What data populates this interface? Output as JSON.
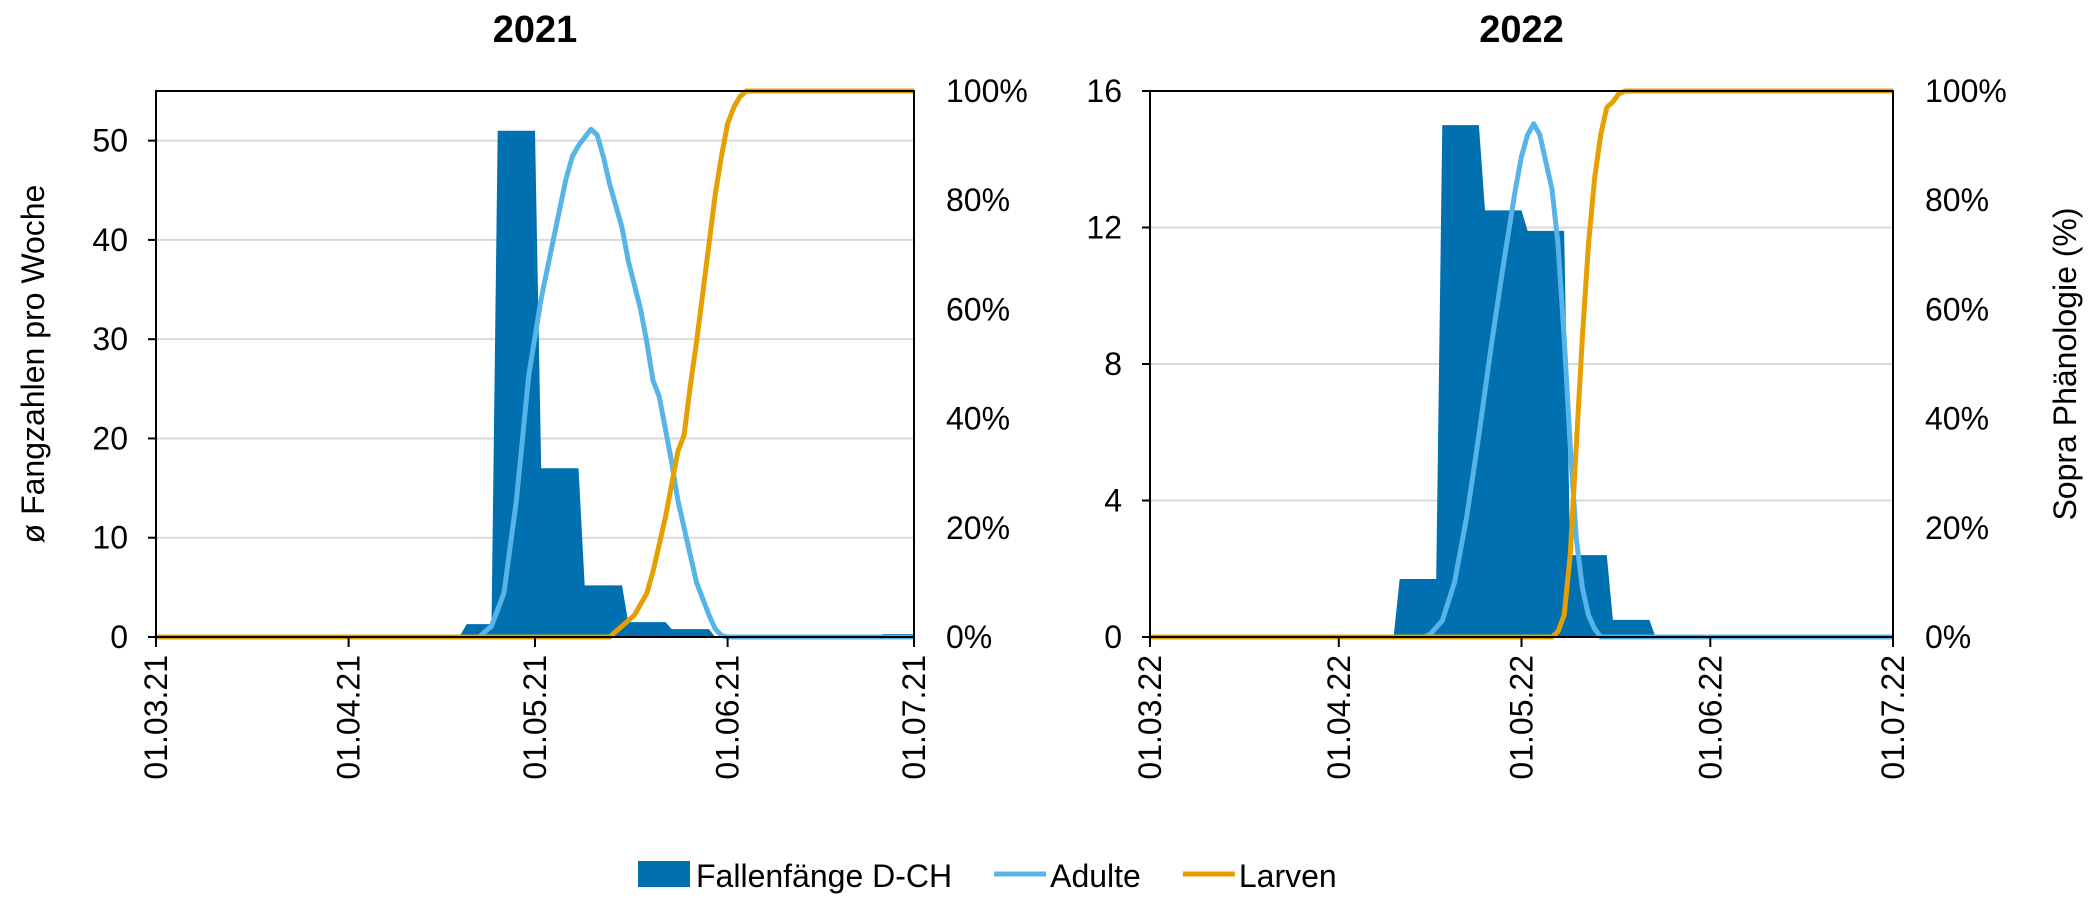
{
  "colors": {
    "fallen": "#0070B0",
    "adulte": "#56B4E9",
    "larven": "#E69F00",
    "grid": "#D9D9D9",
    "frame": "#000000"
  },
  "legend": {
    "placement": "bottom-center",
    "items": [
      {
        "key": "fallen",
        "label": "Fallenfänge D-CH",
        "kind": "area"
      },
      {
        "key": "adulte",
        "label": "Adulte",
        "kind": "line"
      },
      {
        "key": "larven",
        "label": "Larven",
        "kind": "line"
      }
    ]
  },
  "chart_data": [
    {
      "type": "area",
      "title": "2021",
      "ylabel_left": "ø Fangzahlen pro Woche",
      "ylabel_right": "",
      "grid": true,
      "x_range": [
        "2021-03-01",
        "2021-07-01"
      ],
      "x_ticks": [
        {
          "date": "2021-03-01",
          "label": "01.03.21"
        },
        {
          "date": "2021-04-01",
          "label": "01.04.21"
        },
        {
          "date": "2021-05-01",
          "label": "01.05.21"
        },
        {
          "date": "2021-06-01",
          "label": "01.06.21"
        },
        {
          "date": "2021-07-01",
          "label": "01.07.21"
        }
      ],
      "y_left": {
        "min": 0,
        "max": 55,
        "ticks": [
          0,
          10,
          20,
          30,
          40,
          50
        ]
      },
      "y_right": {
        "min": 0,
        "max": 100,
        "ticks": [
          0,
          20,
          40,
          60,
          80,
          100
        ],
        "tick_labels": [
          "0%",
          "20%",
          "40%",
          "60%",
          "80%",
          "100%"
        ]
      },
      "series": [
        {
          "key": "fallen",
          "name": "Fallenfänge D-CH",
          "kind": "area",
          "axis": "left",
          "points": [
            [
              "2021-03-01",
              0
            ],
            [
              "2021-04-11",
              0
            ],
            [
              "2021-04-19",
              0.2
            ],
            [
              "2021-04-20",
              1.3
            ],
            [
              "2021-04-24",
              1.3
            ],
            [
              "2021-04-25",
              51
            ],
            [
              "2021-05-01",
              51
            ],
            [
              "2021-05-02",
              17
            ],
            [
              "2021-05-08",
              17
            ],
            [
              "2021-05-09",
              5.2
            ],
            [
              "2021-05-15",
              5.2
            ],
            [
              "2021-05-16",
              1.5
            ],
            [
              "2021-05-22",
              1.5
            ],
            [
              "2021-05-23",
              0.8
            ],
            [
              "2021-05-29",
              0.8
            ],
            [
              "2021-05-30",
              0
            ],
            [
              "2021-06-25",
              0
            ],
            [
              "2021-06-26",
              0.3
            ],
            [
              "2021-07-01",
              0.3
            ]
          ]
        },
        {
          "key": "adulte",
          "name": "Adulte",
          "kind": "line",
          "axis": "right",
          "points": [
            [
              "2021-03-01",
              0
            ],
            [
              "2021-04-22",
              0
            ],
            [
              "2021-04-24",
              2
            ],
            [
              "2021-04-26",
              8
            ],
            [
              "2021-04-28",
              25
            ],
            [
              "2021-04-30",
              48
            ],
            [
              "2021-05-02",
              62
            ],
            [
              "2021-05-04",
              73
            ],
            [
              "2021-05-06",
              84
            ],
            [
              "2021-05-07",
              88
            ],
            [
              "2021-05-08",
              90
            ],
            [
              "2021-05-09",
              91.5
            ],
            [
              "2021-05-10",
              93
            ],
            [
              "2021-05-11",
              92
            ],
            [
              "2021-05-12",
              88
            ],
            [
              "2021-05-13",
              83
            ],
            [
              "2021-05-14",
              79
            ],
            [
              "2021-05-15",
              75
            ],
            [
              "2021-05-16",
              69
            ],
            [
              "2021-05-18",
              60
            ],
            [
              "2021-05-19",
              54
            ],
            [
              "2021-05-20",
              47
            ],
            [
              "2021-05-21",
              44
            ],
            [
              "2021-05-22",
              38
            ],
            [
              "2021-05-23",
              32
            ],
            [
              "2021-05-24",
              25
            ],
            [
              "2021-05-25",
              20
            ],
            [
              "2021-05-26",
              15
            ],
            [
              "2021-05-27",
              10
            ],
            [
              "2021-05-28",
              7
            ],
            [
              "2021-05-29",
              4
            ],
            [
              "2021-05-30",
              1.5
            ],
            [
              "2021-05-31",
              0.3
            ],
            [
              "2021-06-01",
              0
            ],
            [
              "2021-07-01",
              0
            ]
          ]
        },
        {
          "key": "larven",
          "name": "Larven",
          "kind": "line",
          "axis": "right",
          "points": [
            [
              "2021-03-01",
              0
            ],
            [
              "2021-05-13",
              0
            ],
            [
              "2021-05-14",
              1
            ],
            [
              "2021-05-15",
              2
            ],
            [
              "2021-05-16",
              3
            ],
            [
              "2021-05-17",
              4
            ],
            [
              "2021-05-18",
              6
            ],
            [
              "2021-05-19",
              8
            ],
            [
              "2021-05-20",
              12
            ],
            [
              "2021-05-21",
              17
            ],
            [
              "2021-05-22",
              22
            ],
            [
              "2021-05-23",
              28
            ],
            [
              "2021-05-24",
              34
            ],
            [
              "2021-05-25",
              37
            ],
            [
              "2021-05-26",
              46
            ],
            [
              "2021-05-27",
              54
            ],
            [
              "2021-05-28",
              63
            ],
            [
              "2021-05-29",
              72
            ],
            [
              "2021-05-30",
              81
            ],
            [
              "2021-05-31",
              88
            ],
            [
              "2021-06-01",
              94
            ],
            [
              "2021-06-02",
              97
            ],
            [
              "2021-06-03",
              99
            ],
            [
              "2021-06-04",
              100
            ],
            [
              "2021-07-01",
              100
            ]
          ]
        }
      ]
    },
    {
      "type": "area",
      "title": "2022",
      "ylabel_left": "",
      "ylabel_right": "Sopra Phänologie (%)",
      "grid": true,
      "x_range": [
        "2022-03-01",
        "2022-07-01"
      ],
      "x_ticks": [
        {
          "date": "2022-03-01",
          "label": "01.03.22"
        },
        {
          "date": "2022-04-01",
          "label": "01.04.22"
        },
        {
          "date": "2022-05-01",
          "label": "01.05.22"
        },
        {
          "date": "2022-06-01",
          "label": "01.06.22"
        },
        {
          "date": "2022-07-01",
          "label": "01.07.22"
        }
      ],
      "y_left": {
        "min": 0,
        "max": 16,
        "ticks": [
          0,
          4,
          8,
          12,
          16
        ]
      },
      "y_right": {
        "min": 0,
        "max": 100,
        "ticks": [
          0,
          20,
          40,
          60,
          80,
          100
        ],
        "tick_labels": [
          "0%",
          "20%",
          "40%",
          "60%",
          "80%",
          "100%"
        ]
      },
      "series": [
        {
          "key": "fallen",
          "name": "Fallenfänge D-CH",
          "kind": "area",
          "axis": "left",
          "points": [
            [
              "2022-03-01",
              0
            ],
            [
              "2022-04-10",
              0
            ],
            [
              "2022-04-11",
              1.7
            ],
            [
              "2022-04-17",
              1.7
            ],
            [
              "2022-04-18",
              15
            ],
            [
              "2022-04-24",
              15
            ],
            [
              "2022-04-25",
              12.5
            ],
            [
              "2022-05-01",
              12.5
            ],
            [
              "2022-05-02",
              11.9
            ],
            [
              "2022-05-08",
              11.9
            ],
            [
              "2022-05-09",
              2.4
            ],
            [
              "2022-05-15",
              2.4
            ],
            [
              "2022-05-16",
              0.5
            ],
            [
              "2022-05-22",
              0.5
            ],
            [
              "2022-05-23",
              0
            ],
            [
              "2022-07-01",
              0
            ]
          ]
        },
        {
          "key": "adulte",
          "name": "Adulte",
          "kind": "line",
          "axis": "right",
          "points": [
            [
              "2022-03-01",
              0
            ],
            [
              "2022-04-15",
              0
            ],
            [
              "2022-04-16",
              0.5
            ],
            [
              "2022-04-18",
              3
            ],
            [
              "2022-04-20",
              10
            ],
            [
              "2022-04-22",
              22
            ],
            [
              "2022-04-24",
              37
            ],
            [
              "2022-04-26",
              53
            ],
            [
              "2022-04-28",
              68
            ],
            [
              "2022-04-30",
              82
            ],
            [
              "2022-05-01",
              88
            ],
            [
              "2022-05-02",
              92
            ],
            [
              "2022-05-03",
              94
            ],
            [
              "2022-05-04",
              92
            ],
            [
              "2022-05-05",
              87
            ],
            [
              "2022-05-06",
              82
            ],
            [
              "2022-05-07",
              72
            ],
            [
              "2022-05-08",
              55
            ],
            [
              "2022-05-09",
              35
            ],
            [
              "2022-05-10",
              18
            ],
            [
              "2022-05-11",
              9
            ],
            [
              "2022-05-12",
              4
            ],
            [
              "2022-05-13",
              1.5
            ],
            [
              "2022-05-14",
              0
            ],
            [
              "2022-07-01",
              0
            ]
          ]
        },
        {
          "key": "larven",
          "name": "Larven",
          "kind": "line",
          "axis": "right",
          "points": [
            [
              "2022-03-01",
              0
            ],
            [
              "2022-05-06",
              0
            ],
            [
              "2022-05-07",
              1
            ],
            [
              "2022-05-08",
              4
            ],
            [
              "2022-05-09",
              15
            ],
            [
              "2022-05-10",
              35
            ],
            [
              "2022-05-11",
              55
            ],
            [
              "2022-05-12",
              72
            ],
            [
              "2022-05-13",
              84
            ],
            [
              "2022-05-14",
              92
            ],
            [
              "2022-05-15",
              97
            ],
            [
              "2022-05-16",
              98
            ],
            [
              "2022-05-17",
              99.5
            ],
            [
              "2022-05-18",
              100
            ],
            [
              "2022-07-01",
              100
            ]
          ]
        }
      ]
    }
  ]
}
